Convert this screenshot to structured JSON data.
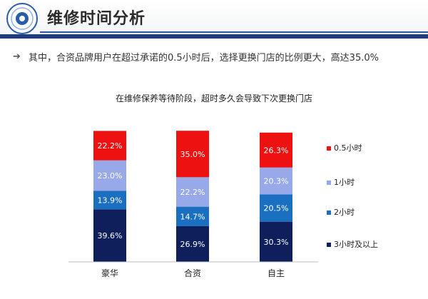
{
  "page": {
    "title": "维修时间分析",
    "bullet": "其中，合资品牌用户在超过承诺的0.5小时后，选择更换门店的比例更大，高达35.0%"
  },
  "chart_data": {
    "type": "bar",
    "stacked": true,
    "title": "在维修保养等待阶段，超时多久会导致下次更换门店",
    "xlabel": "",
    "ylabel": "",
    "ylim": [
      0,
      100
    ],
    "grid": false,
    "legend_position": "right",
    "categories": [
      "豪华",
      "合资",
      "自主"
    ],
    "series": [
      {
        "name": "3小时及以上",
        "values": [
          39.6,
          26.9,
          30.3
        ],
        "labels": [
          "39.6%",
          "26.9%",
          "30.3%"
        ],
        "color": "#0f1f5c"
      },
      {
        "name": "2小时",
        "values": [
          13.9,
          14.7,
          20.5
        ],
        "labels": [
          "13.9%",
          "14.7%",
          "20.5%"
        ],
        "color": "#1a6fc0"
      },
      {
        "name": "1小时",
        "values": [
          23.0,
          22.2,
          20.3
        ],
        "labels": [
          "23.0%",
          "22.2%",
          "20.3%"
        ],
        "color": "#97a9e8"
      },
      {
        "name": "0.5小时",
        "values": [
          22.2,
          35.0,
          26.3
        ],
        "labels": [
          "22.2%",
          "35.0%",
          "26.3%"
        ],
        "color": "#ee1111"
      }
    ]
  }
}
